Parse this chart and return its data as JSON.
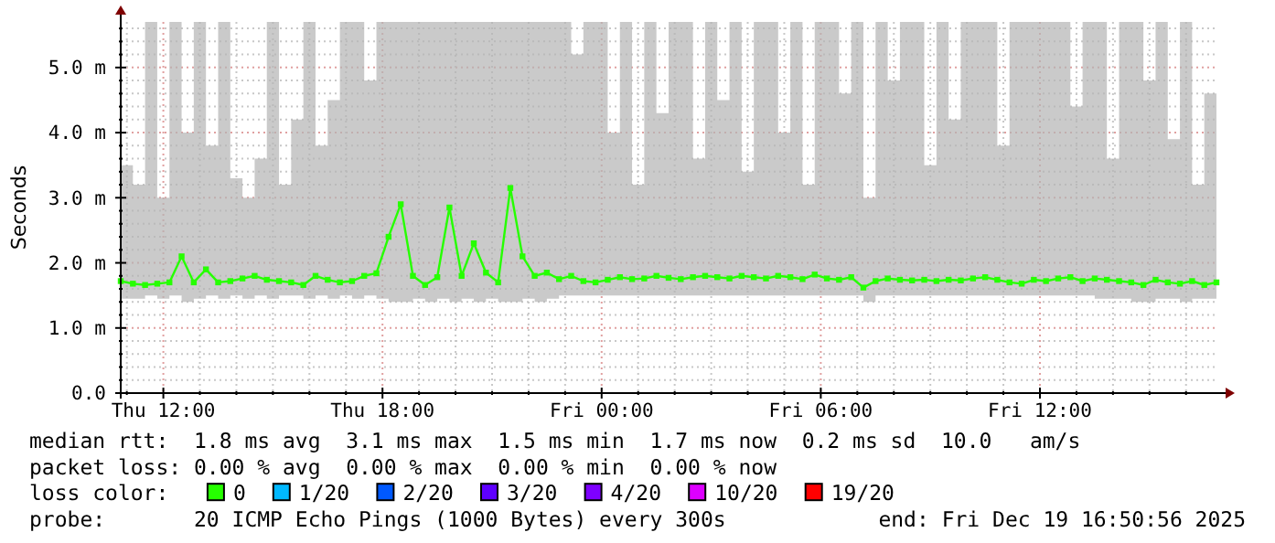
{
  "chart_data": {
    "type": "line",
    "ylabel": "Seconds",
    "legend_title": "loss color:",
    "legend": "bottom",
    "grid": true,
    "marker": "square",
    "line_style": "solid",
    "xlim": [
      "2025-12-18T10:50",
      "2025-12-19T16:50"
    ],
    "ylim": [
      0,
      5.7
    ],
    "yticks": [
      {
        "value": 0,
        "label": "0.0"
      },
      {
        "value": 0.2,
        "label": null
      },
      {
        "value": 0.4,
        "label": null
      },
      {
        "value": 0.6,
        "label": null
      },
      {
        "value": 0.8,
        "label": null
      },
      {
        "value": 1,
        "label": "1.0 m"
      },
      {
        "value": 1.2,
        "label": null
      },
      {
        "value": 1.4,
        "label": null
      },
      {
        "value": 1.6,
        "label": null
      },
      {
        "value": 1.8,
        "label": null
      },
      {
        "value": 2,
        "label": "2.0 m"
      },
      {
        "value": 2.2,
        "label": null
      },
      {
        "value": 2.4,
        "label": null
      },
      {
        "value": 2.6,
        "label": null
      },
      {
        "value": 2.8,
        "label": null
      },
      {
        "value": 3,
        "label": "3.0 m"
      },
      {
        "value": 3.2,
        "label": null
      },
      {
        "value": 3.4,
        "label": null
      },
      {
        "value": 3.6,
        "label": null
      },
      {
        "value": 3.8,
        "label": null
      },
      {
        "value": 4,
        "label": "4.0 m"
      },
      {
        "value": 4.2,
        "label": null
      },
      {
        "value": 4.4,
        "label": null
      },
      {
        "value": 4.6,
        "label": null
      },
      {
        "value": 4.8,
        "label": null
      },
      {
        "value": 5,
        "label": "5.0 m"
      },
      {
        "value": 5.2,
        "label": null
      },
      {
        "value": 5.4,
        "label": null
      },
      {
        "value": 5.6,
        "label": null
      }
    ],
    "xticks": [
      {
        "value": "2025-12-18T11:00",
        "label": null
      },
      {
        "value": "2025-12-18T12:00",
        "label": "Thu 12:00"
      },
      {
        "value": "2025-12-18T13:00",
        "label": null
      },
      {
        "value": "2025-12-18T14:00",
        "label": null
      },
      {
        "value": "2025-12-18T15:00",
        "label": null
      },
      {
        "value": "2025-12-18T16:00",
        "label": null
      },
      {
        "value": "2025-12-18T17:00",
        "label": null
      },
      {
        "value": "2025-12-18T18:00",
        "label": "Thu 18:00"
      },
      {
        "value": "2025-12-18T19:00",
        "label": null
      },
      {
        "value": "2025-12-18T20:00",
        "label": null
      },
      {
        "value": "2025-12-18T21:00",
        "label": null
      },
      {
        "value": "2025-12-18T22:00",
        "label": null
      },
      {
        "value": "2025-12-18T23:00",
        "label": null
      },
      {
        "value": "2025-12-19T00:00",
        "label": "Fri 00:00"
      },
      {
        "value": "2025-12-19T01:00",
        "label": null
      },
      {
        "value": "2025-12-19T02:00",
        "label": null
      },
      {
        "value": "2025-12-19T03:00",
        "label": null
      },
      {
        "value": "2025-12-19T04:00",
        "label": null
      },
      {
        "value": "2025-12-19T05:00",
        "label": null
      },
      {
        "value": "2025-12-19T06:00",
        "label": "Fri 06:00"
      },
      {
        "value": "2025-12-19T07:00",
        "label": null
      },
      {
        "value": "2025-12-19T08:00",
        "label": null
      },
      {
        "value": "2025-12-19T09:00",
        "label": null
      },
      {
        "value": "2025-12-19T10:00",
        "label": null
      },
      {
        "value": "2025-12-19T11:00",
        "label": null
      },
      {
        "value": "2025-12-19T12:00",
        "label": "Fri 12:00"
      },
      {
        "value": "2025-12-19T13:00",
        "label": null
      },
      {
        "value": "2025-12-19T14:00",
        "label": null
      },
      {
        "value": "2025-12-19T15:00",
        "label": null
      },
      {
        "value": "2025-12-19T16:00",
        "label": null
      }
    ],
    "x": [
      "2025-12-18T10:50",
      "2025-12-18T11:10",
      "2025-12-18T11:30",
      "2025-12-18T11:50",
      "2025-12-18T12:10",
      "2025-12-18T12:30",
      "2025-12-18T12:50",
      "2025-12-18T13:10",
      "2025-12-18T13:30",
      "2025-12-18T13:50",
      "2025-12-18T14:10",
      "2025-12-18T14:30",
      "2025-12-18T14:50",
      "2025-12-18T15:10",
      "2025-12-18T15:30",
      "2025-12-18T15:50",
      "2025-12-18T16:10",
      "2025-12-18T16:30",
      "2025-12-18T16:50",
      "2025-12-18T17:10",
      "2025-12-18T17:30",
      "2025-12-18T17:50",
      "2025-12-18T18:10",
      "2025-12-18T18:30",
      "2025-12-18T18:50",
      "2025-12-18T19:10",
      "2025-12-18T19:30",
      "2025-12-18T19:50",
      "2025-12-18T20:10",
      "2025-12-18T20:30",
      "2025-12-18T20:50",
      "2025-12-18T21:10",
      "2025-12-18T21:30",
      "2025-12-18T21:50",
      "2025-12-18T22:10",
      "2025-12-18T22:30",
      "2025-12-18T22:50",
      "2025-12-18T23:10",
      "2025-12-18T23:30",
      "2025-12-18T23:50",
      "2025-12-19T00:10",
      "2025-12-19T00:30",
      "2025-12-19T00:50",
      "2025-12-19T01:10",
      "2025-12-19T01:30",
      "2025-12-19T01:50",
      "2025-12-19T02:10",
      "2025-12-19T02:30",
      "2025-12-19T02:50",
      "2025-12-19T03:10",
      "2025-12-19T03:30",
      "2025-12-19T03:50",
      "2025-12-19T04:10",
      "2025-12-19T04:30",
      "2025-12-19T04:50",
      "2025-12-19T05:10",
      "2025-12-19T05:30",
      "2025-12-19T05:50",
      "2025-12-19T06:10",
      "2025-12-19T06:30",
      "2025-12-19T06:50",
      "2025-12-19T07:10",
      "2025-12-19T07:30",
      "2025-12-19T07:50",
      "2025-12-19T08:10",
      "2025-12-19T08:30",
      "2025-12-19T08:50",
      "2025-12-19T09:10",
      "2025-12-19T09:30",
      "2025-12-19T09:50",
      "2025-12-19T10:10",
      "2025-12-19T10:30",
      "2025-12-19T10:50",
      "2025-12-19T11:10",
      "2025-12-19T11:30",
      "2025-12-19T11:50",
      "2025-12-19T12:10",
      "2025-12-19T12:30",
      "2025-12-19T12:50",
      "2025-12-19T13:10",
      "2025-12-19T13:30",
      "2025-12-19T13:50",
      "2025-12-19T14:10",
      "2025-12-19T14:30",
      "2025-12-19T14:50",
      "2025-12-19T15:10",
      "2025-12-19T15:30",
      "2025-12-19T15:50",
      "2025-12-19T16:10",
      "2025-12-19T16:30",
      "2025-12-19T16:50"
    ],
    "series": [
      {
        "name": "0",
        "color": "#26ff00",
        "values": [
          1.72,
          1.68,
          1.66,
          1.68,
          1.7,
          2.1,
          1.7,
          1.9,
          1.7,
          1.72,
          1.76,
          1.8,
          1.74,
          1.72,
          1.7,
          1.66,
          1.8,
          1.74,
          1.7,
          1.72,
          1.8,
          1.84,
          2.4,
          2.9,
          1.8,
          1.66,
          1.78,
          2.85,
          1.8,
          2.3,
          1.85,
          1.7,
          3.15,
          2.1,
          1.8,
          1.85,
          1.75,
          1.8,
          1.72,
          1.7,
          1.74,
          1.78,
          1.75,
          1.76,
          1.8,
          1.77,
          1.75,
          1.78,
          1.8,
          1.78,
          1.76,
          1.8,
          1.78,
          1.76,
          1.8,
          1.78,
          1.75,
          1.82,
          1.76,
          1.74,
          1.78,
          1.62,
          1.72,
          1.76,
          1.74,
          1.73,
          1.74,
          1.72,
          1.74,
          1.73,
          1.76,
          1.78,
          1.74,
          1.7,
          1.68,
          1.74,
          1.72,
          1.76,
          1.78,
          1.72,
          1.76,
          1.74,
          1.72,
          1.7,
          1.66,
          1.74,
          1.7,
          1.68,
          1.72,
          1.66,
          1.7
        ],
        "lower": [
          1.45,
          1.45,
          1.5,
          1.45,
          1.5,
          1.4,
          1.45,
          1.5,
          1.45,
          1.5,
          1.45,
          1.5,
          1.45,
          1.5,
          1.5,
          1.45,
          1.5,
          1.45,
          1.5,
          1.45,
          1.5,
          1.45,
          1.4,
          1.4,
          1.45,
          1.4,
          1.45,
          1.4,
          1.45,
          1.4,
          1.45,
          1.4,
          1.4,
          1.45,
          1.4,
          1.45,
          1.5,
          1.5,
          1.5,
          1.5,
          1.5,
          1.5,
          1.5,
          1.5,
          1.5,
          1.5,
          1.5,
          1.5,
          1.5,
          1.5,
          1.5,
          1.5,
          1.5,
          1.5,
          1.5,
          1.5,
          1.5,
          1.5,
          1.5,
          1.5,
          1.5,
          1.4,
          1.5,
          1.5,
          1.5,
          1.5,
          1.5,
          1.5,
          1.5,
          1.5,
          1.5,
          1.5,
          1.5,
          1.5,
          1.5,
          1.5,
          1.5,
          1.5,
          1.5,
          1.5,
          1.45,
          1.45,
          1.45,
          1.4,
          1.4,
          1.45,
          1.45,
          1.4,
          1.45,
          1.45,
          1.5
        ],
        "upper": [
          3.5,
          3.2,
          5.7,
          3,
          5.7,
          4,
          5.7,
          3.8,
          5.7,
          3.3,
          3,
          3.6,
          5.7,
          3.2,
          4.2,
          5.7,
          3.8,
          4.5,
          5.7,
          5.7,
          4.8,
          5.7,
          5.7,
          5.7,
          5.7,
          5.7,
          5.7,
          5.7,
          5.7,
          5.7,
          5.7,
          5.7,
          5.7,
          5.7,
          5.7,
          5.7,
          5.7,
          5.2,
          5.7,
          5.7,
          4,
          5.7,
          3.2,
          5.7,
          4.3,
          5.7,
          5.7,
          3.6,
          5.7,
          4.5,
          5.7,
          3.4,
          5.7,
          5.7,
          4,
          5.7,
          3.2,
          5.7,
          5.7,
          4.6,
          5.7,
          3,
          5.7,
          4.8,
          5.7,
          5.7,
          3.5,
          5.7,
          4.2,
          5.7,
          5.7,
          5.7,
          3.8,
          5.7,
          5.7,
          5.7,
          5.7,
          5.7,
          4.4,
          5.7,
          5.7,
          3.6,
          5.7,
          5.7,
          4.8,
          5.7,
          3.9,
          5.7,
          3.2,
          4.6,
          3.4
        ]
      },
      {
        "name": "1/20",
        "color": "#00b8ff",
        "values": [
          null,
          null,
          null,
          null,
          null,
          null,
          null,
          null,
          null,
          null,
          null,
          null,
          null,
          null,
          null,
          null,
          null,
          null,
          null,
          null,
          null,
          null,
          null,
          null,
          null,
          null,
          null,
          null,
          null,
          null,
          null,
          null,
          null,
          null,
          null,
          null,
          null,
          null,
          null,
          null,
          null,
          null,
          null,
          null,
          null,
          null,
          null,
          null,
          null,
          null,
          null,
          null,
          null,
          null,
          null,
          null,
          null,
          null,
          null,
          null,
          null,
          null,
          null,
          null,
          null,
          null,
          null,
          null,
          null,
          null,
          null,
          null,
          null,
          null,
          null,
          null,
          null,
          null,
          null,
          null,
          null,
          null,
          null,
          null,
          null,
          null,
          null,
          null,
          null,
          null,
          null
        ]
      },
      {
        "name": "2/20",
        "color": "#0059ff",
        "values": [
          null,
          null,
          null,
          null,
          null,
          null,
          null,
          null,
          null,
          null,
          null,
          null,
          null,
          null,
          null,
          null,
          null,
          null,
          null,
          null,
          null,
          null,
          null,
          null,
          null,
          null,
          null,
          null,
          null,
          null,
          null,
          null,
          null,
          null,
          null,
          null,
          null,
          null,
          null,
          null,
          null,
          null,
          null,
          null,
          null,
          null,
          null,
          null,
          null,
          null,
          null,
          null,
          null,
          null,
          null,
          null,
          null,
          null,
          null,
          null,
          null,
          null,
          null,
          null,
          null,
          null,
          null,
          null,
          null,
          null,
          null,
          null,
          null,
          null,
          null,
          null,
          null,
          null,
          null,
          null,
          null,
          null,
          null,
          null,
          null,
          null,
          null,
          null,
          null,
          null,
          null
        ]
      },
      {
        "name": "3/20",
        "color": "#5e00ff",
        "values": [
          null,
          null,
          null,
          null,
          null,
          null,
          null,
          null,
          null,
          null,
          null,
          null,
          null,
          null,
          null,
          null,
          null,
          null,
          null,
          null,
          null,
          null,
          null,
          null,
          null,
          null,
          null,
          null,
          null,
          null,
          null,
          null,
          null,
          null,
          null,
          null,
          null,
          null,
          null,
          null,
          null,
          null,
          null,
          null,
          null,
          null,
          null,
          null,
          null,
          null,
          null,
          null,
          null,
          null,
          null,
          null,
          null,
          null,
          null,
          null,
          null,
          null,
          null,
          null,
          null,
          null,
          null,
          null,
          null,
          null,
          null,
          null,
          null,
          null,
          null,
          null,
          null,
          null,
          null,
          null,
          null,
          null,
          null,
          null,
          null,
          null,
          null,
          null,
          null,
          null,
          null
        ]
      },
      {
        "name": "4/20",
        "color": "#7e00ff",
        "values": [
          null,
          null,
          null,
          null,
          null,
          null,
          null,
          null,
          null,
          null,
          null,
          null,
          null,
          null,
          null,
          null,
          null,
          null,
          null,
          null,
          null,
          null,
          null,
          null,
          null,
          null,
          null,
          null,
          null,
          null,
          null,
          null,
          null,
          null,
          null,
          null,
          null,
          null,
          null,
          null,
          null,
          null,
          null,
          null,
          null,
          null,
          null,
          null,
          null,
          null,
          null,
          null,
          null,
          null,
          null,
          null,
          null,
          null,
          null,
          null,
          null,
          null,
          null,
          null,
          null,
          null,
          null,
          null,
          null,
          null,
          null,
          null,
          null,
          null,
          null,
          null,
          null,
          null,
          null,
          null,
          null,
          null,
          null,
          null,
          null,
          null,
          null,
          null,
          null,
          null,
          null
        ]
      },
      {
        "name": "10/20",
        "color": "#dd00ff",
        "values": [
          null,
          null,
          null,
          null,
          null,
          null,
          null,
          null,
          null,
          null,
          null,
          null,
          null,
          null,
          null,
          null,
          null,
          null,
          null,
          null,
          null,
          null,
          null,
          null,
          null,
          null,
          null,
          null,
          null,
          null,
          null,
          null,
          null,
          null,
          null,
          null,
          null,
          null,
          null,
          null,
          null,
          null,
          null,
          null,
          null,
          null,
          null,
          null,
          null,
          null,
          null,
          null,
          null,
          null,
          null,
          null,
          null,
          null,
          null,
          null,
          null,
          null,
          null,
          null,
          null,
          null,
          null,
          null,
          null,
          null,
          null,
          null,
          null,
          null,
          null,
          null,
          null,
          null,
          null,
          null,
          null,
          null,
          null,
          null,
          null,
          null,
          null,
          null,
          null,
          null,
          null
        ]
      },
      {
        "name": "19/20",
        "color": "#ff0000",
        "values": [
          null,
          null,
          null,
          null,
          null,
          null,
          null,
          null,
          null,
          null,
          null,
          null,
          null,
          null,
          null,
          null,
          null,
          null,
          null,
          null,
          null,
          null,
          null,
          null,
          null,
          null,
          null,
          null,
          null,
          null,
          null,
          null,
          null,
          null,
          null,
          null,
          null,
          null,
          null,
          null,
          null,
          null,
          null,
          null,
          null,
          null,
          null,
          null,
          null,
          null,
          null,
          null,
          null,
          null,
          null,
          null,
          null,
          null,
          null,
          null,
          null,
          null,
          null,
          null,
          null,
          null,
          null,
          null,
          null,
          null,
          null,
          null,
          null,
          null,
          null,
          null,
          null,
          null,
          null,
          null,
          null,
          null,
          null,
          null,
          null,
          null,
          null,
          null,
          null,
          null,
          null
        ]
      }
    ],
    "annotations": [
      "median rtt:  1.8 ms avg  3.1 ms max  1.5 ms min  1.7 ms now  0.2 ms sd  10.0   am/s",
      "packet loss: 0.00 % avg  0.00 % max  0.00 % min  0.00 % now",
      "probe:       20 ICMP Echo Pings (1000 Bytes) every 300s",
      "end: Fri Dec 19 16:50:56 2025"
    ]
  }
}
